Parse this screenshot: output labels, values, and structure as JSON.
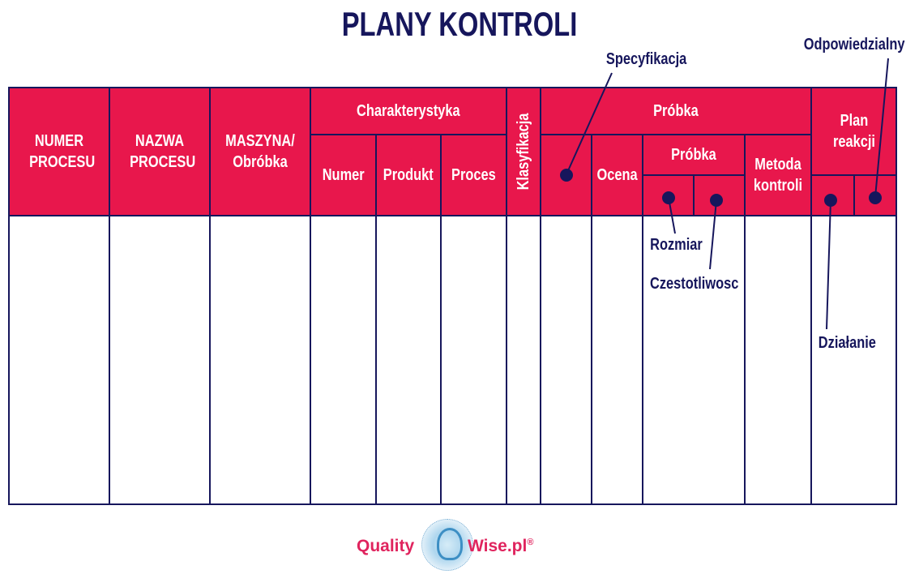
{
  "title": "PLANY KONTROLI",
  "headers": {
    "numer_procesu": "NUMER PROCESU",
    "nazwa_procesu": "NAZWA PROCESU",
    "maszyna": "MASZYNA/ Obróbka",
    "charakterystyka": "Charakterystyka",
    "numer": "Numer",
    "produkt": "Produkt",
    "proces": "Proces",
    "klasyfikacja": "Klasyfikacja",
    "probka": "Próbka",
    "ocena": "Ocena",
    "probka_sub": "Próbka",
    "metoda": "Metoda kontroli",
    "plan_reakcji": "Plan reakcji"
  },
  "annotations": {
    "specyfikacja": "Specyfikacja",
    "odpowiedzialny": "Odpowiedzialny",
    "rozmiar": "Rozmiar",
    "czestotliwosc": "Czestotliwosc",
    "dzialanie": "Działanie"
  },
  "logo": {
    "left": "Quality",
    "right": "Wise.pl",
    "mark": "®"
  },
  "colors": {
    "header": "#e8174c",
    "ink": "#16165c"
  }
}
